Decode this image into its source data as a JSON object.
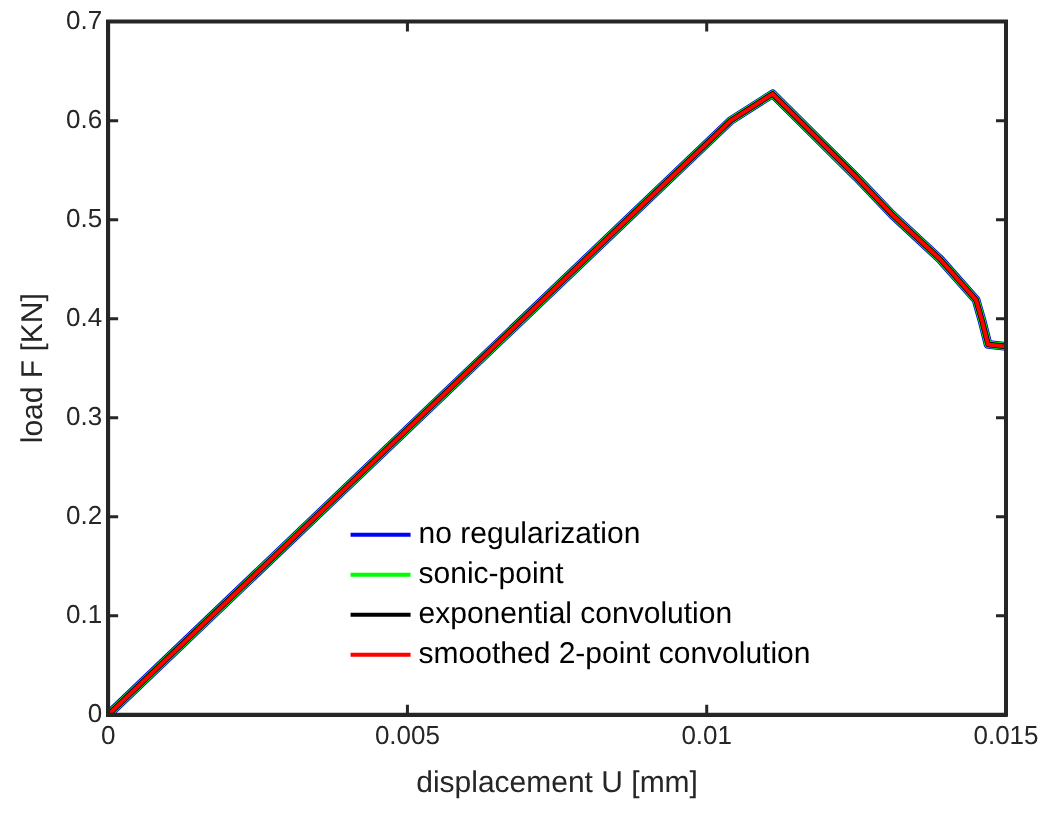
{
  "chart_data": {
    "type": "line",
    "xlabel": "displacement U [mm]",
    "ylabel": "load F [KN]",
    "xlim": [
      0,
      0.015
    ],
    "xticks": [
      0,
      0.005,
      0.01,
      0.015
    ],
    "ylim": [
      0,
      0.7
    ],
    "yticks": [
      0,
      0.1,
      0.2,
      0.3,
      0.4,
      0.5,
      0.6,
      0.7
    ],
    "grid": false,
    "legend": "bottom",
    "marker": "none",
    "line_style": "solid",
    "series": [
      {
        "name": "no regularization",
        "color": "#0000ff",
        "x": [
          0,
          0.0104,
          0.0111,
          0.0125,
          0.0131,
          0.0139,
          0.0145,
          0.0146,
          0.0147,
          0.015
        ],
        "values": [
          0,
          0.6,
          0.627,
          0.543,
          0.505,
          0.46,
          0.419,
          0.398,
          0.374,
          0.372
        ]
      },
      {
        "name": "sonic-point",
        "color": "#00ff00",
        "x": [
          0,
          0.0104,
          0.0111,
          0.0125,
          0.0131,
          0.0139,
          0.0145,
          0.0146,
          0.0147,
          0.015
        ],
        "values": [
          0,
          0.6,
          0.627,
          0.543,
          0.505,
          0.46,
          0.419,
          0.398,
          0.374,
          0.372
        ]
      },
      {
        "name": "exponential convolution",
        "color": "#000000",
        "x": [
          0,
          0.0104,
          0.0111,
          0.0125,
          0.0131,
          0.0139,
          0.0145,
          0.0146,
          0.0147,
          0.015
        ],
        "values": [
          0,
          0.6,
          0.627,
          0.543,
          0.505,
          0.46,
          0.419,
          0.398,
          0.374,
          0.372
        ]
      },
      {
        "name": "smoothed 2-point convolution",
        "color": "#ff0000",
        "x": [
          0,
          0.0104,
          0.0111,
          0.0125,
          0.0131,
          0.0139,
          0.0145,
          0.0146,
          0.0147,
          0.015
        ],
        "values": [
          0,
          0.6,
          0.627,
          0.543,
          0.505,
          0.46,
          0.419,
          0.398,
          0.374,
          0.372
        ]
      }
    ]
  }
}
